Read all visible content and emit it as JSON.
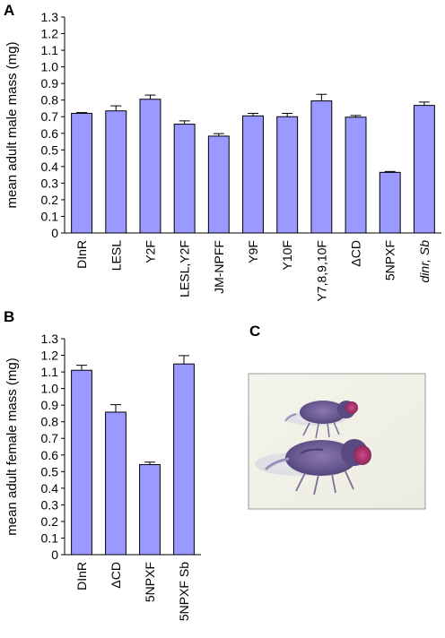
{
  "panels": {
    "a": "A",
    "b": "B",
    "c": "C"
  },
  "chart_data": [
    {
      "type": "bar",
      "panel": "A",
      "ylabel": "mean adult male mass (mg)",
      "ylim": [
        0,
        1.3
      ],
      "ytick_step": 0.1,
      "yticks": [
        "0",
        "0.1",
        "0.2",
        "0.3",
        "0.4",
        "0.5",
        "0.6",
        "0.7",
        "0.8",
        "0.9",
        "1.0",
        "1.1",
        "1.2",
        "1.3"
      ],
      "categories": [
        "DInR",
        "LESL",
        "Y2F",
        "LESL,Y2F",
        "JM-NPFF",
        "Y9F",
        "Y10F",
        "Y7,8,9,10F",
        "ΔCD",
        "5NPXF",
        "dinr, Sb"
      ],
      "italic_categories": [
        "dinr, Sb"
      ],
      "values": [
        0.72,
        0.735,
        0.805,
        0.655,
        0.583,
        0.705,
        0.7,
        0.795,
        0.697,
        0.365,
        0.768
      ],
      "errors": [
        0.005,
        0.03,
        0.025,
        0.02,
        0.015,
        0.015,
        0.02,
        0.04,
        0.01,
        0.005,
        0.02
      ],
      "color": "#9999ff"
    },
    {
      "type": "bar",
      "panel": "B",
      "ylabel": "mean adult female mass (mg)",
      "ylim": [
        0,
        1.3
      ],
      "ytick_step": 0.1,
      "yticks": [
        "0",
        "0.1",
        "0.2",
        "0.3",
        "0.4",
        "0.5",
        "0.6",
        "0.7",
        "0.8",
        "0.9",
        "1.0",
        "1.1",
        "1.2",
        "1.3"
      ],
      "categories": [
        "DInR",
        "ΔCD",
        "5NPXF",
        "5NPXF Sb"
      ],
      "italic_categories": [],
      "values": [
        1.11,
        0.858,
        0.542,
        1.148
      ],
      "errors": [
        0.03,
        0.045,
        0.015,
        0.05
      ],
      "color": "#9999ff"
    }
  ]
}
